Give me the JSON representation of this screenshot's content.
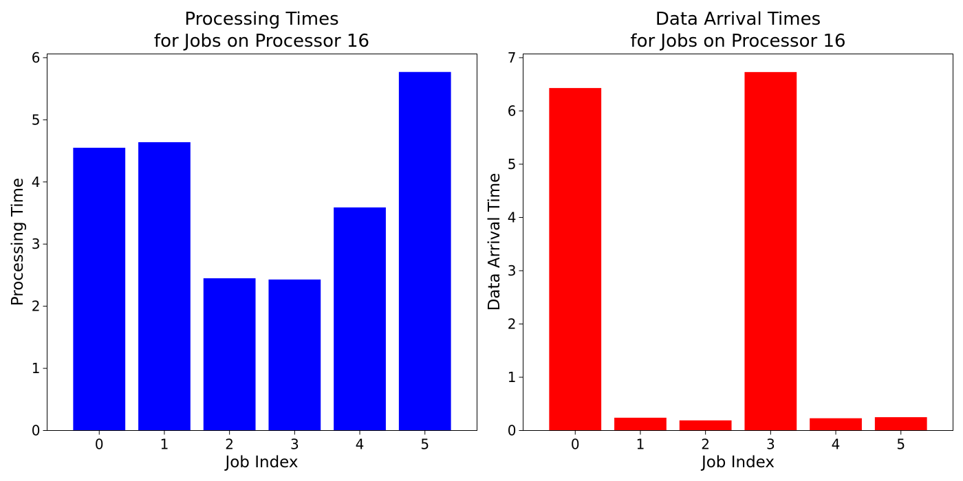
{
  "chart_data": [
    {
      "type": "bar",
      "title_line1": "Processing Times",
      "title_line2": "for Jobs on Processor 16",
      "xlabel": "Job Index",
      "ylabel": "Processing Time",
      "categories": [
        "0",
        "1",
        "2",
        "3",
        "4",
        "5"
      ],
      "values": [
        4.55,
        4.64,
        2.45,
        2.43,
        3.59,
        5.77
      ],
      "ylim": [
        0,
        6.06
      ],
      "yticks": [
        "0",
        "1",
        "2",
        "3",
        "4",
        "5",
        "6"
      ],
      "color": "#0000ff",
      "grid": false
    },
    {
      "type": "bar",
      "title_line1": "Data Arrival Times",
      "title_line2": "for Jobs on Processor 16",
      "xlabel": "Job Index",
      "ylabel": "Data Arrival Time",
      "categories": [
        "0",
        "1",
        "2",
        "3",
        "4",
        "5"
      ],
      "values": [
        6.43,
        0.24,
        0.19,
        6.73,
        0.23,
        0.25
      ],
      "ylim": [
        0,
        7.07
      ],
      "yticks": [
        "0",
        "1",
        "2",
        "3",
        "4",
        "5",
        "6",
        "7"
      ],
      "color": "#ff0000",
      "grid": false
    }
  ]
}
